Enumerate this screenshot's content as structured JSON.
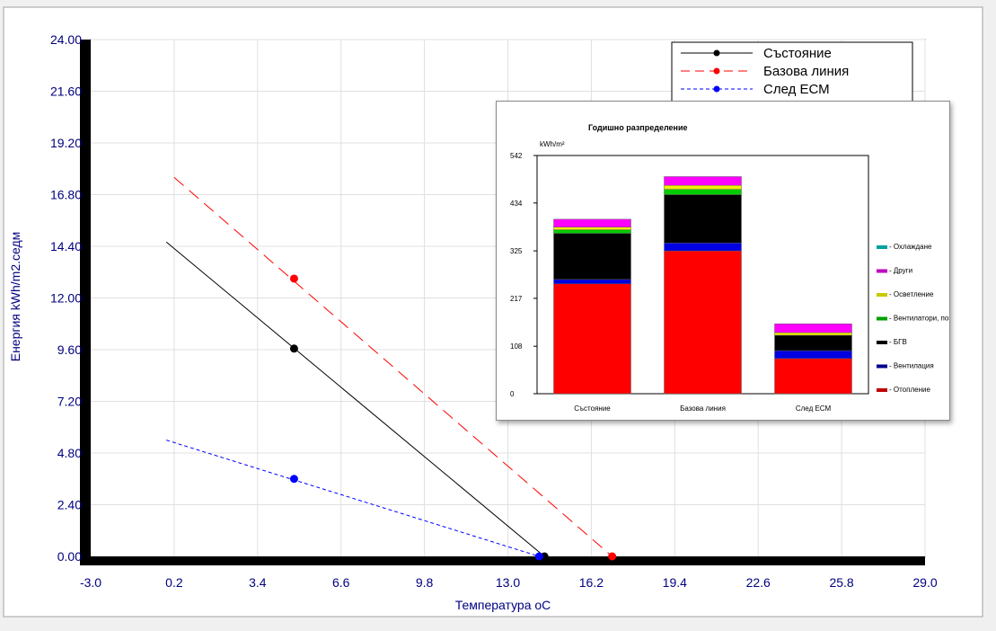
{
  "chart_data": [
    {
      "type": "line",
      "xlabel": "Температура оС",
      "ylabel": "Енергия kWh/m2.седм",
      "xlim": [
        -3.0,
        29.0
      ],
      "ylim": [
        0.0,
        24.0
      ],
      "x_ticks": [
        "-3.0",
        "0.2",
        "3.4",
        "6.6",
        "9.8",
        "13.0",
        "16.2",
        "19.4",
        "22.6",
        "25.8",
        "29.0"
      ],
      "y_ticks": [
        "0.00",
        "2.40",
        "4.80",
        "7.20",
        "9.60",
        "12.00",
        "14.40",
        "16.80",
        "19.20",
        "21.60",
        "24.00"
      ],
      "grid": true,
      "legend_position": "top-right",
      "series": [
        {
          "name": "Състояние",
          "color": "#000000",
          "line_style": "solid",
          "line": [
            [
              -0.1,
              14.6
            ],
            [
              14.4,
              0.0
            ]
          ],
          "points": [
            [
              4.8,
              9.65
            ],
            [
              14.4,
              0.0
            ]
          ]
        },
        {
          "name": "Базова линия",
          "color": "#ff0000",
          "line_style": "dashed",
          "line": [
            [
              0.2,
              17.6
            ],
            [
              17.0,
              0.0
            ]
          ],
          "points": [
            [
              4.8,
              12.9
            ],
            [
              17.0,
              0.0
            ]
          ]
        },
        {
          "name": "След ЕСМ",
          "color": "#0000ff",
          "line_style": "dotted",
          "line": [
            [
              -0.1,
              5.4
            ],
            [
              14.2,
              0.0
            ]
          ],
          "points": [
            [
              4.8,
              3.6
            ],
            [
              14.2,
              0.0
            ]
          ]
        }
      ]
    },
    {
      "type": "bar",
      "stacked": true,
      "title": "Годишно разпределение",
      "ylabel": "kWh/m²",
      "ylim": [
        0,
        542
      ],
      "y_ticks": [
        "0",
        "108",
        "217",
        "325",
        "434",
        "542"
      ],
      "categories": [
        "Състояние",
        "Базова линия",
        "След ЕСМ"
      ],
      "legend_position": "right",
      "series": [
        {
          "name": " - Отопление",
          "color": "#ff0000",
          "legend_color": "#c00000",
          "values": [
            250,
            325,
            80
          ]
        },
        {
          "name": " - Вентилация",
          "color": "#0000e0",
          "legend_color": "#000090",
          "values": [
            10,
            18,
            18
          ]
        },
        {
          "name": " - БГВ",
          "color": "#000000",
          "legend_color": "#000000",
          "values": [
            105,
            110,
            35
          ]
        },
        {
          "name": " - Вентилатори, помпи",
          "color": "#00cc00",
          "legend_color": "#00a000",
          "values": [
            8,
            12,
            0
          ]
        },
        {
          "name": " - Осветление",
          "color": "#f0f000",
          "legend_color": "#c8c800",
          "values": [
            6,
            9,
            6
          ]
        },
        {
          "name": " - Други",
          "color": "#ff00ff",
          "legend_color": "#c000c0",
          "values": [
            18,
            20,
            20
          ]
        },
        {
          "name": " - Охлаждане",
          "color": "#00d0d0",
          "legend_color": "#00a0a0",
          "values": [
            0,
            0,
            0
          ]
        }
      ]
    }
  ]
}
